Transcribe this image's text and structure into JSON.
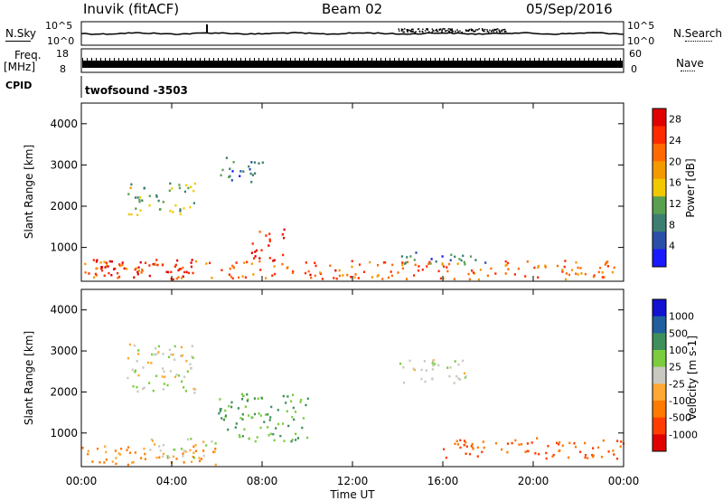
{
  "header": {
    "station": "Inuvik (fitACF)",
    "beam": "Beam 02",
    "date": "05/Sep/2016"
  },
  "top_panels": {
    "nsky_label": "N.Sky",
    "nsky_ticks": [
      "10^5",
      "10^0"
    ],
    "nsearch_label": "N.Search",
    "nsearch_ticks": [
      "10^5",
      "10^0"
    ],
    "freq_label": "Freq.",
    "freq_unit": "[MHz]",
    "freq_ticks": [
      "18",
      "8"
    ],
    "nave_label": "Nave",
    "nave_ticks": [
      "60",
      "0"
    ],
    "cpid_label": "CPID",
    "cpid_value": "twofsound -3503"
  },
  "colors": {
    "power_scale": [
      "#1a1aff",
      "#2a4fa8",
      "#3c7f70",
      "#5aa050",
      "#f2c800",
      "#f39a00",
      "#ff6a00",
      "#ff2a00",
      "#e00000"
    ],
    "velocity_scale": [
      "#e00000",
      "#ff3d00",
      "#ff7a00",
      "#ffa733",
      "#c9c9c2",
      "#7ccc40",
      "#3e8f5a",
      "#1f5fa0",
      "#1212d0"
    ]
  },
  "chart_data": [
    {
      "type": "heatmap",
      "title": "",
      "xlabel": "Time UT",
      "ylabel": "Slant Range [km]",
      "x_ticks": [
        "00:00",
        "04:00",
        "08:00",
        "12:00",
        "16:00",
        "20:00",
        "00:00"
      ],
      "y_ticks": [
        1000,
        2000,
        3000,
        4000
      ],
      "xlim": [
        0,
        24
      ],
      "ylim": [
        180,
        4500
      ],
      "colorbar_label": "Power [dB]",
      "colorbar_ticks": [
        4,
        8,
        12,
        16,
        20,
        24,
        28
      ],
      "colorbar_range": [
        0,
        30
      ],
      "echo_regions": [
        {
          "t": [
            0,
            24
          ],
          "range": [
            250,
            700
          ],
          "value": 22
        },
        {
          "t": [
            0.5,
            5
          ],
          "range": [
            300,
            750
          ],
          "value": 28
        },
        {
          "t": [
            7.5,
            9
          ],
          "range": [
            700,
            1500
          ],
          "value": 28
        },
        {
          "t": [
            2,
            5
          ],
          "range": [
            1800,
            2600
          ],
          "value": 12
        },
        {
          "t": [
            14,
            18
          ],
          "range": [
            600,
            900
          ],
          "value": 8
        },
        {
          "t": [
            6,
            8
          ],
          "range": [
            2600,
            3200
          ],
          "value": 6
        }
      ]
    },
    {
      "type": "heatmap",
      "title": "",
      "xlabel": "Time UT",
      "ylabel": "Slant Range [km]",
      "x_ticks": [
        "00:00",
        "04:00",
        "08:00",
        "12:00",
        "16:00",
        "20:00",
        "00:00"
      ],
      "y_ticks": [
        1000,
        2000,
        3000,
        4000
      ],
      "xlim": [
        0,
        24
      ],
      "ylim": [
        180,
        4500
      ],
      "colorbar_label": "Velocity [m s-1]",
      "colorbar_ticks": [
        1000,
        500,
        100,
        25,
        -25,
        -100,
        -500,
        -1000
      ],
      "echo_regions": [
        {
          "t": [
            0,
            6
          ],
          "range": [
            250,
            700
          ],
          "value": -100
        },
        {
          "t": [
            3,
            6
          ],
          "range": [
            400,
            900
          ],
          "value": 0
        },
        {
          "t": [
            6,
            10
          ],
          "range": [
            800,
            2000
          ],
          "value": 100
        },
        {
          "t": [
            16,
            24
          ],
          "range": [
            400,
            900
          ],
          "value": -500
        },
        {
          "t": [
            2,
            5
          ],
          "range": [
            2000,
            3200
          ],
          "value": 0
        },
        {
          "t": [
            14,
            17
          ],
          "range": [
            2200,
            2800
          ],
          "value": 0
        }
      ]
    }
  ]
}
